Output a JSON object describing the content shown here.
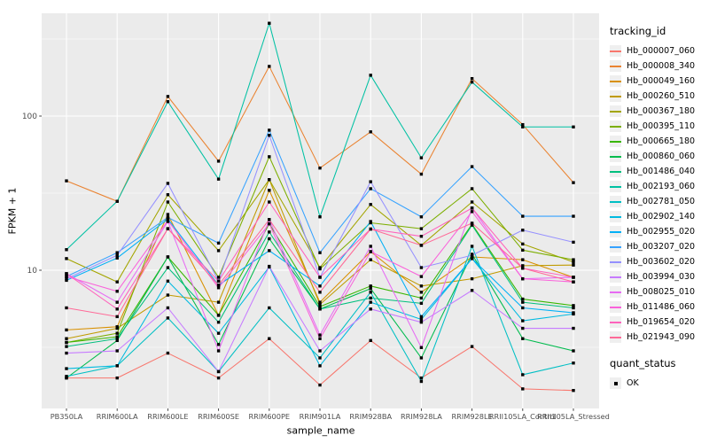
{
  "figure": {
    "background": "#FFFFFF",
    "panel_background": "#EBEBEB",
    "gridline_color": "#FFFFFF",
    "axis_text_color": "#4D4D4D",
    "point_color": "#000000"
  },
  "chart_data": {
    "type": "line",
    "title": "",
    "xlabel": "sample_name",
    "ylabel": "FPKM + 1",
    "y_scale": "log10",
    "y_major_ticks": [
      10,
      100
    ],
    "y_tick_labels": [
      "10",
      "100"
    ],
    "y_minor_gridlines": [
      3.162,
      31.623,
      316.228
    ],
    "ylim": [
      1.25,
      470
    ],
    "grid": true,
    "legend_title": "tracking_id",
    "legend_position": "right",
    "marker": "small black square",
    "x": [
      "PB350LA",
      "RRIM600LA",
      "RRIM600LE",
      "RRIM600SE",
      "RRIM600PE",
      "RRIM901LA",
      "RRIM928BA",
      "RRIM928LA",
      "RRIM928LE",
      "RRII105LA_Control",
      "RRII105LA_Stressed"
    ],
    "series": [
      {
        "name": "Hb_000007_060",
        "color": "#F8766D",
        "values": [
          2.0,
          2.0,
          2.9,
          2.0,
          3.6,
          1.8,
          3.5,
          2.0,
          3.2,
          1.7,
          1.66
        ]
      },
      {
        "name": "Hb_000008_340",
        "color": "#EA8331",
        "values": [
          38,
          28,
          134,
          51,
          210,
          46,
          79,
          42,
          175,
          88,
          37
        ]
      },
      {
        "name": "Hb_000049_160",
        "color": "#D89000",
        "values": [
          4.1,
          4.3,
          23,
          5.1,
          33,
          6.2,
          13.2,
          7.2,
          12.2,
          11.7,
          9.0
        ]
      },
      {
        "name": "Hb_000260_510",
        "color": "#C09B00",
        "values": [
          3.6,
          4.2,
          6.9,
          6.2,
          38.7,
          6.0,
          11.7,
          7.9,
          8.8,
          10.7,
          10.8
        ]
      },
      {
        "name": "Hb_000367_180",
        "color": "#A3A500",
        "values": [
          11.9,
          8.4,
          30.9,
          13.4,
          38.7,
          10.4,
          26.7,
          14.5,
          27.7,
          14.8,
          11.3
        ]
      },
      {
        "name": "Hb_000395_110",
        "color": "#7CAE00",
        "values": [
          3.4,
          3.9,
          27.7,
          9.0,
          54.5,
          10.2,
          20.3,
          18.6,
          33.8,
          13.5,
          11.7
        ]
      },
      {
        "name": "Hb_000665_180",
        "color": "#39B600",
        "values": [
          3.4,
          3.7,
          12.2,
          5.1,
          20,
          5.8,
          7.9,
          6.6,
          19.9,
          6.5,
          5.9
        ]
      },
      {
        "name": "Hb_000860_060",
        "color": "#00BB4E",
        "values": [
          2.0,
          3.5,
          12.2,
          3.3,
          16,
          5.6,
          7.6,
          2.7,
          12.7,
          3.6,
          3.0
        ]
      },
      {
        "name": "Hb_001486_040",
        "color": "#00BF7D",
        "values": [
          3.2,
          3.6,
          10.4,
          4.6,
          17.7,
          5.6,
          6.6,
          6.1,
          19.6,
          6.2,
          5.7
        ]
      },
      {
        "name": "Hb_002193_060",
        "color": "#00C1A3",
        "values": [
          13.6,
          28,
          124,
          39,
          400,
          22.2,
          184,
          53.6,
          166,
          85,
          85
        ]
      },
      {
        "name": "Hb_002781_050",
        "color": "#00BFC4",
        "values": [
          2.05,
          2.4,
          4.9,
          2.2,
          5.7,
          2.7,
          7.2,
          1.9,
          14.3,
          2.1,
          2.5
        ]
      },
      {
        "name": "Hb_002902_140",
        "color": "#00BAE0",
        "values": [
          2.3,
          2.4,
          8.5,
          3.9,
          10.5,
          2.4,
          6.2,
          4.8,
          11.9,
          4.7,
          5.2
        ]
      },
      {
        "name": "Hb_002955_020",
        "color": "#00B0F6",
        "values": [
          8.6,
          12,
          21.5,
          8.0,
          13.4,
          7.9,
          20.7,
          5.0,
          11.9,
          5.7,
          5.3
        ]
      },
      {
        "name": "Hb_003207_020",
        "color": "#35A2FF",
        "values": [
          9.1,
          13,
          22,
          15,
          81,
          13,
          33.8,
          22.2,
          47,
          22.4,
          22.4
        ]
      },
      {
        "name": "Hb_003602_020",
        "color": "#9590FF",
        "values": [
          8.8,
          12.5,
          36.6,
          8.5,
          75,
          9.0,
          37.5,
          10.4,
          12.5,
          18.2,
          15.2
        ]
      },
      {
        "name": "Hb_003994_030",
        "color": "#C77CFF",
        "values": [
          2.9,
          3.0,
          5.7,
          2.2,
          10.6,
          3.0,
          5.6,
          4.6,
          7.4,
          4.2,
          4.2
        ]
      },
      {
        "name": "Hb_008025_010",
        "color": "#E76BF3",
        "values": [
          9.5,
          6.2,
          20.7,
          3.0,
          21.3,
          3.8,
          14.3,
          3.15,
          25.3,
          8.8,
          9.0
        ]
      },
      {
        "name": "Hb_011486_060",
        "color": "#FA62DB",
        "values": [
          9.1,
          7.3,
          21,
          7.7,
          20,
          3.6,
          13.2,
          9.1,
          24,
          8.8,
          8.4
        ]
      },
      {
        "name": "Hb_019654_020",
        "color": "#FF62BC",
        "values": [
          9.5,
          5.6,
          18.6,
          8.5,
          27.7,
          9.0,
          18.5,
          16.6,
          25.3,
          10.3,
          9.0
        ]
      },
      {
        "name": "Hb_021943_090",
        "color": "#FF6A98",
        "values": [
          5.7,
          5.0,
          18.6,
          8.0,
          21.3,
          7.2,
          18.5,
          14.5,
          20.2,
          10.3,
          8.4
        ]
      }
    ]
  },
  "quant_status_legend": {
    "title": "quant_status",
    "items": [
      "OK"
    ]
  }
}
